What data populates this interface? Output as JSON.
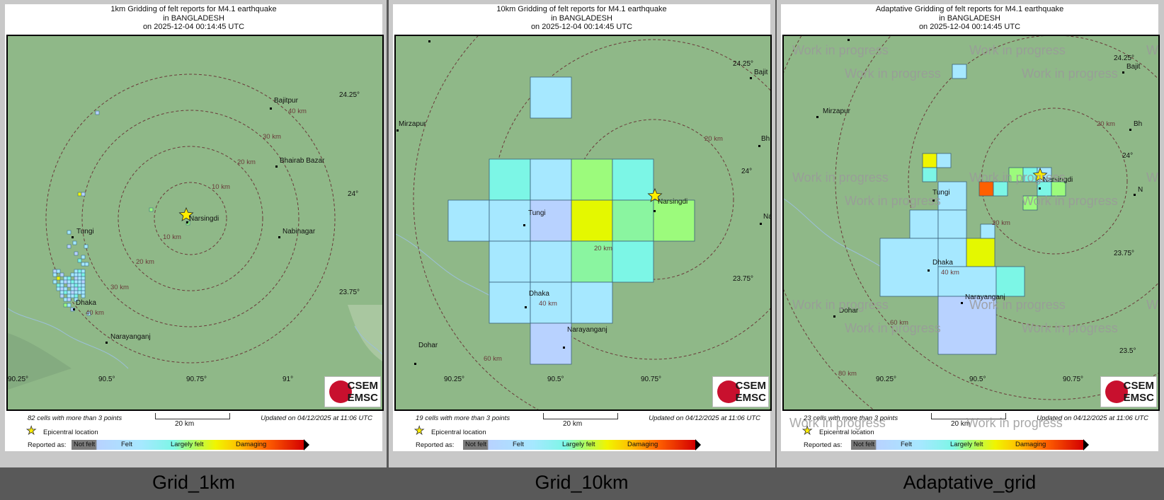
{
  "panels": [
    {
      "title_lines": [
        "1km Gridding of felt reports for M4.1 earthquake",
        "in BANGLADESH",
        "on  2025-12-04 00:14:45 UTC"
      ],
      "caption": "Grid_1km",
      "cells_text": "82 cells with more than 3 points",
      "updated_text": "Updated on 04/12/2025 at 11:06 UTC",
      "scale_label": "20 km",
      "epicentral_label": "Epicentral location",
      "reported_as": "Reported as:",
      "legend": [
        "Not felt",
        "Felt",
        "Largely felt",
        "Damaging"
      ],
      "logo": [
        "CSEM",
        "EMSC"
      ],
      "lat_labels": [
        "24.25°",
        "24°",
        "23.75°"
      ],
      "lon_labels": [
        "90.25°",
        "90.5°",
        "90.75°",
        "91°"
      ],
      "places": [
        "Bajitpur",
        "Bhairab Bazar",
        "Nabinagar",
        "Narsingdi",
        "Tungi",
        "Dhaka",
        "Narayanganj"
      ],
      "rings": [
        "10 km",
        "20 km",
        "30 km",
        "40 km",
        "10 km",
        "20 km",
        "30 km",
        "40 km"
      ],
      "watermarks": []
    },
    {
      "title_lines": [
        "10km Gridding of felt reports for M4.1 earthquake",
        "in BANGLADESH",
        "on  2025-12-04 00:14:45 UTC"
      ],
      "caption": "Grid_10km",
      "cells_text": "19 cells with more than 3 points",
      "updated_text": "Updated on 04/12/2025 at 11:06 UTC",
      "scale_label": "20 km",
      "epicentral_label": "Epicentral location",
      "reported_as": "Reported as:",
      "legend": [
        "Not felt",
        "Felt",
        "Largely felt",
        "Damaging"
      ],
      "logo": [
        "CSEM",
        "EMSC"
      ],
      "lat_labels": [
        "24.25°",
        "24°",
        "23.75°"
      ],
      "lon_labels": [
        "90.25°",
        "90.5°",
        "90.75°"
      ],
      "places": [
        "Mirzapur",
        "Bajit",
        "Bh",
        "Na",
        "Narsingdi",
        "Tungi",
        "Dhaka",
        "Narayanganj",
        "Dohar"
      ],
      "rings": [
        "20 km",
        "20 km",
        "40 km",
        "60 km"
      ],
      "watermarks": []
    },
    {
      "title_lines": [
        "Adaptative Gridding of felt reports for M4.1 earthquake",
        "in BANGLADESH",
        "on  2025-12-04 00:14:45 UTC"
      ],
      "caption": "Adaptative_grid",
      "cells_text": "23 cells with more than 3 points",
      "updated_text": "Updated on 04/12/2025 at 11:06 UTC",
      "scale_label": "20 km",
      "epicentral_label": "Epicentral location",
      "reported_as": "Reported as:",
      "legend": [
        "Not felt",
        "Felt",
        "Largely felt",
        "Damaging"
      ],
      "logo": [
        "CSEM",
        "EMSC"
      ],
      "lat_labels": [
        "24.25°",
        "24°",
        "23.75°",
        "23.5°"
      ],
      "lon_labels": [
        "90.25°",
        "90.5°",
        "90.75°"
      ],
      "places": [
        "Mirzapur",
        "Bajit",
        "Bh",
        "N",
        "Narsingdi",
        "Tungi",
        "Dhaka",
        "Narayanganj",
        "Dohar"
      ],
      "rings": [
        "20 km",
        "20 km",
        "40 km",
        "60 km",
        "80 km"
      ],
      "watermarks": [
        "Work in progress",
        "Work in progress",
        "Work in progress",
        "Work in progress",
        "Work in progress",
        "Work in progress",
        "Work in progress",
        "Work in progress",
        "Work in progress",
        "Work in progress",
        "Work in progress",
        "Work in progress",
        "Work in progress",
        "Work in progress",
        "Work in progress",
        "Work in progress",
        "Work in progress",
        "Work in progress",
        "Work in progress",
        "Work in progress"
      ]
    }
  ],
  "colors": {
    "map_bg": "#8fb888",
    "ring": "#6a3a3a",
    "not_felt": "#7a7a7a",
    "felt": "#b8d2ff",
    "largely_felt": "#9cfb7c",
    "damaging": "#ff6000"
  },
  "icons": [
    "star-icon",
    "csem-emsc-logo"
  ]
}
